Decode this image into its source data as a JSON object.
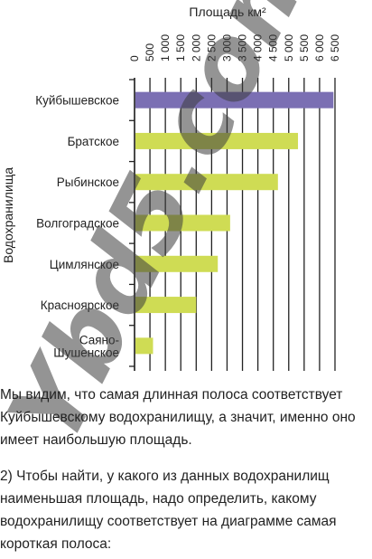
{
  "chart_data": {
    "type": "bar",
    "orientation": "horizontal",
    "title": "Площадь км²",
    "ylabel": "Водохранилища",
    "categories": [
      "Куйбышевское",
      "Братское",
      "Рыбинское",
      "Волгоградское",
      "Цимлянское",
      "Красноярское",
      "Саяно-Шушенское"
    ],
    "category_lines": [
      [
        "Куйбышевское"
      ],
      [
        "Братское"
      ],
      [
        "Рыбинское"
      ],
      [
        "Волгоградское"
      ],
      [
        "Цимлянское"
      ],
      [
        "Красноярское"
      ],
      [
        "Саяно-",
        "Шушенское"
      ]
    ],
    "values": [
      6450,
      5300,
      4650,
      3100,
      2700,
      2000,
      600
    ],
    "colors": [
      "#7b6fb3",
      "#cfdc54",
      "#cfdc54",
      "#cfdc54",
      "#cfdc54",
      "#cfdc54",
      "#cfdc54"
    ],
    "xlim": [
      0,
      6500
    ],
    "ticks": [
      0,
      500,
      1000,
      1500,
      2000,
      2500,
      3000,
      3500,
      4000,
      4500,
      5000,
      5500,
      6000,
      6500
    ],
    "tick_labels": [
      "0",
      "500",
      "1 000",
      "1 500",
      "2 000",
      "2 500",
      "3 000",
      "3 500",
      "4 000",
      "4 500",
      "5 000",
      "5 500",
      "6 000",
      "6 500"
    ],
    "grid": true,
    "axis_position": "top"
  },
  "text": {
    "paragraph1": [
      "Мы видим, что самая длинная полоса соответствует",
      "Куйбышевскому водохранилищу, а значит, именно оно",
      "имеет наибольшую площадь."
    ],
    "paragraph2": [
      "2) Чтобы найти, у какого из данных водохранилищ",
      "наименьшая площадь, надо определить, какому",
      "водохранилищу соответствует на диаграмме самая",
      "короткая полоса:"
    ]
  },
  "watermark": "Ybd5.com"
}
